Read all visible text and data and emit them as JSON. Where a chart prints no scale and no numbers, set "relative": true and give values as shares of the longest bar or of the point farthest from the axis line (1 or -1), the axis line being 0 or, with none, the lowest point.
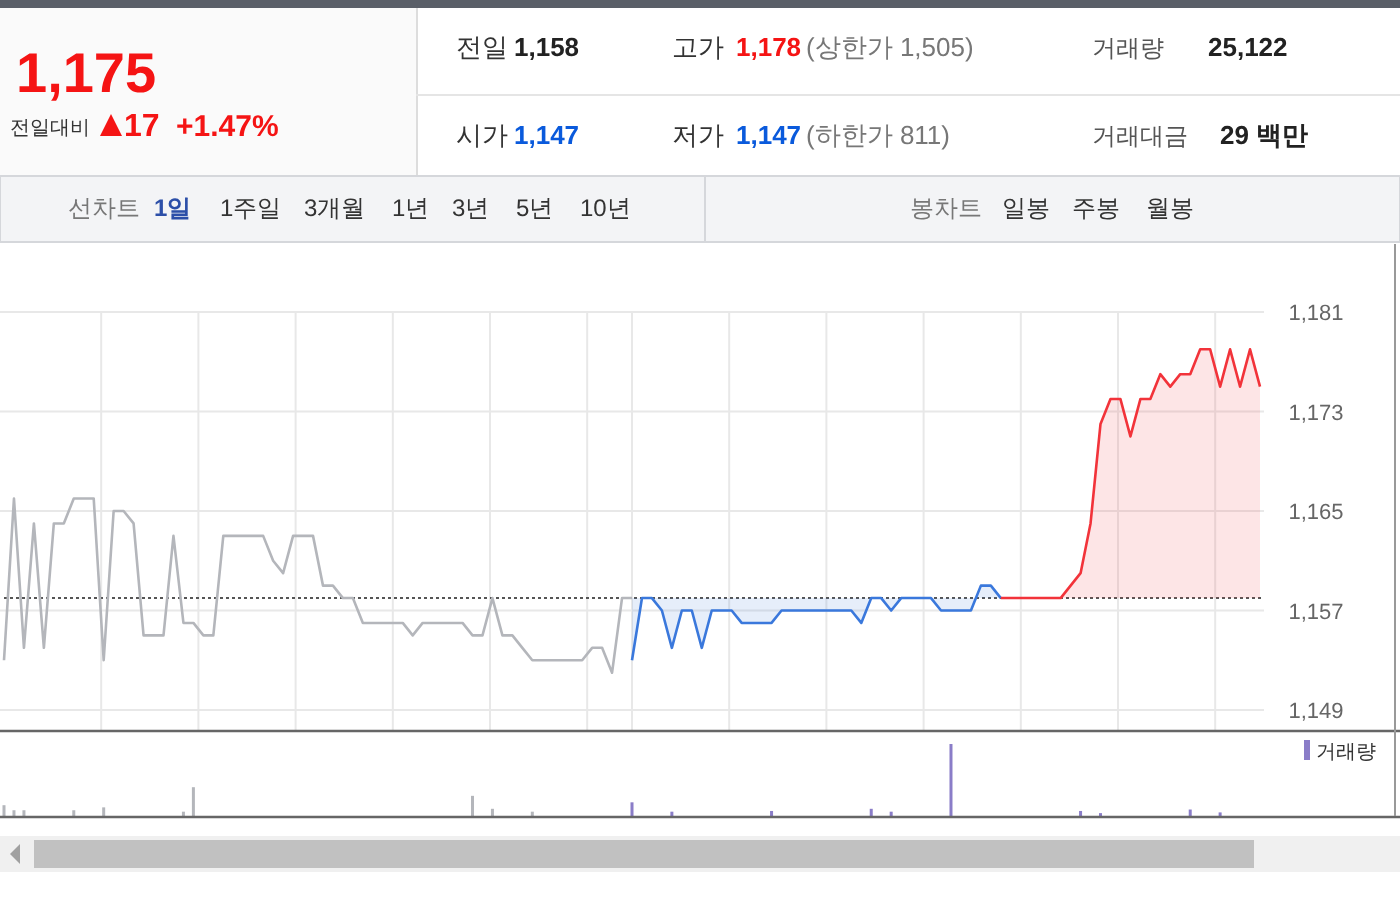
{
  "chart_data": [
    {
      "type": "other",
      "annotations": [
        "1,175",
        "전일대비",
        "17",
        "+1.47%",
        "전일",
        "1,158",
        "고가",
        "1,178",
        "(상한가 1,505)",
        "거래량",
        "25,122",
        "시가",
        "1,147",
        "저가",
        "1,147",
        "(하한가 811)",
        "거래대금",
        "29 백만",
        "선차트",
        "1일",
        "1주일",
        "3개월",
        "1년",
        "3년",
        "5년",
        "10년",
        "봉차트",
        "일봉",
        "주봉",
        "월봉"
      ]
    },
    {
      "type": "line",
      "tick_labels": "y",
      "grid": true,
      "ylim": [
        1149,
        1181
      ],
      "yticks": [
        {
          "value": 1149,
          "label": "1,149"
        },
        {
          "value": 1157,
          "label": "1,157"
        },
        {
          "value": 1165,
          "label": "1,165"
        },
        {
          "value": 1173,
          "label": "1,173"
        },
        {
          "value": 1181,
          "label": "1,181"
        }
      ],
      "ref_lines": [
        {
          "axis": "y",
          "value": 1158,
          "label": null,
          "color": "#555555",
          "line_style": "dotted"
        }
      ],
      "categories": [
        null,
        null,
        null,
        null,
        null,
        null,
        null,
        null,
        null,
        null,
        null,
        null,
        null,
        null,
        null,
        null,
        null,
        null,
        null,
        null,
        null,
        null,
        null,
        null,
        null,
        null,
        null,
        null,
        null,
        null,
        null,
        null,
        null,
        null,
        null,
        null,
        null,
        null,
        null,
        null,
        null,
        null,
        null,
        null,
        null,
        null,
        null,
        null,
        null,
        null,
        null,
        null,
        null,
        null,
        null,
        null,
        null,
        null,
        null,
        null,
        null,
        null,
        null,
        null,
        null,
        null,
        null,
        null,
        null,
        null,
        null,
        null,
        null,
        null,
        null,
        null,
        null,
        null,
        null,
        null,
        null,
        null,
        null,
        null,
        null,
        null,
        null,
        null,
        null,
        null,
        null,
        null,
        null,
        null,
        null,
        null,
        null,
        null,
        null,
        null,
        null,
        null,
        null,
        null,
        null,
        null,
        null,
        null,
        null,
        null,
        null,
        null,
        null,
        null,
        null,
        null,
        null,
        null,
        null,
        null,
        null,
        null,
        null,
        null,
        null,
        null,
        null
      ],
      "series": [
        {
          "type": "line",
          "color": "#b4b6bb",
          "values": [
            1153,
            1166,
            1154,
            1164,
            1154,
            1164,
            1164,
            1166,
            1166,
            1166,
            1153,
            1165,
            1165,
            1164,
            1155,
            1155,
            1155,
            1163,
            1156,
            1156,
            1155,
            1155,
            1163,
            1163,
            1163,
            1163,
            1163,
            1161,
            1160,
            1163,
            1163,
            1163,
            1159,
            1159,
            1158,
            1158,
            1156,
            1156,
            1156,
            1156,
            1156,
            1155,
            1156,
            1156,
            1156,
            1156,
            1156,
            1155,
            1155,
            1158,
            1155,
            1155,
            1154,
            1153,
            1153,
            1153,
            1153,
            1153,
            1153,
            1154,
            1154,
            1152,
            1158,
            1158,
            null,
            null,
            null,
            null,
            null,
            null,
            null,
            null,
            null,
            null,
            null,
            null,
            null,
            null,
            null,
            null,
            null,
            null,
            null,
            null,
            null,
            null,
            null,
            null,
            null,
            null,
            null,
            null,
            null,
            null,
            null,
            null,
            null,
            null,
            null,
            null,
            null,
            null,
            null,
            null,
            null,
            null,
            null,
            null,
            null,
            null,
            null,
            null,
            null,
            null,
            null,
            null,
            null,
            null,
            null,
            null,
            null,
            null,
            null,
            null,
            null,
            null,
            null
          ]
        },
        {
          "type": "area",
          "color": "#3a78dc",
          "values": [
            null,
            null,
            null,
            null,
            null,
            null,
            null,
            null,
            null,
            null,
            null,
            null,
            null,
            null,
            null,
            null,
            null,
            null,
            null,
            null,
            null,
            null,
            null,
            null,
            null,
            null,
            null,
            null,
            null,
            null,
            null,
            null,
            null,
            null,
            null,
            null,
            null,
            null,
            null,
            null,
            null,
            null,
            null,
            null,
            null,
            null,
            null,
            null,
            null,
            null,
            null,
            null,
            null,
            null,
            null,
            null,
            null,
            null,
            null,
            null,
            null,
            null,
            null,
            1153,
            1158,
            1158,
            1157,
            1154,
            1157,
            1157,
            1154,
            1157,
            1157,
            1157,
            1156,
            1156,
            1156,
            1156,
            1157,
            1157,
            1157,
            1157,
            1157,
            1157,
            1157,
            1157,
            1156,
            1158,
            1158,
            1157,
            1158,
            1158,
            1158,
            1158,
            1157,
            1157,
            1157,
            1157,
            1159,
            1159,
            1158,
            null,
            null,
            null,
            null,
            null,
            null,
            null,
            null,
            null,
            null,
            null,
            null,
            null,
            null,
            null,
            null,
            null,
            null,
            null,
            null,
            null,
            null,
            null,
            null,
            null,
            null
          ]
        },
        {
          "type": "area",
          "color": "#f2333a",
          "values": [
            null,
            null,
            null,
            null,
            null,
            null,
            null,
            null,
            null,
            null,
            null,
            null,
            null,
            null,
            null,
            null,
            null,
            null,
            null,
            null,
            null,
            null,
            null,
            null,
            null,
            null,
            null,
            null,
            null,
            null,
            null,
            null,
            null,
            null,
            null,
            null,
            null,
            null,
            null,
            null,
            null,
            null,
            null,
            null,
            null,
            null,
            null,
            null,
            null,
            null,
            null,
            null,
            null,
            null,
            null,
            null,
            null,
            null,
            null,
            null,
            null,
            null,
            null,
            null,
            null,
            null,
            null,
            null,
            null,
            null,
            null,
            null,
            null,
            null,
            null,
            null,
            null,
            null,
            null,
            null,
            null,
            null,
            null,
            null,
            null,
            null,
            null,
            null,
            null,
            null,
            null,
            null,
            null,
            null,
            null,
            null,
            null,
            null,
            null,
            null,
            1158,
            1158,
            1158,
            1158,
            1158,
            1158,
            1158,
            1159,
            1160,
            1164,
            1172,
            1174,
            1174,
            1171,
            1174,
            1174,
            1176,
            1175,
            1176,
            1176,
            1178,
            1178,
            1175,
            1178,
            1175,
            1178,
            1175
          ]
        }
      ]
    },
    {
      "type": "bar",
      "relative": true,
      "tick_labels": false,
      "legend": "top right",
      "categories": [
        null,
        null,
        null,
        null,
        null,
        null,
        null,
        null,
        null,
        null,
        null,
        null,
        null,
        null,
        null,
        null,
        null,
        null,
        null,
        null,
        null,
        null,
        null,
        null,
        null,
        null,
        null,
        null,
        null,
        null,
        null,
        null,
        null,
        null,
        null,
        null,
        null,
        null,
        null,
        null,
        null,
        null,
        null,
        null,
        null,
        null,
        null,
        null,
        null,
        null,
        null,
        null,
        null,
        null,
        null,
        null,
        null,
        null,
        null,
        null,
        null,
        null,
        null,
        null,
        null,
        null,
        null,
        null,
        null,
        null,
        null,
        null,
        null,
        null,
        null,
        null,
        null,
        null,
        null,
        null,
        null,
        null,
        null,
        null,
        null,
        null,
        null,
        null,
        null,
        null,
        null,
        null,
        null,
        null,
        null,
        null,
        null,
        null,
        null,
        null,
        null,
        null,
        null,
        null,
        null,
        null,
        null,
        null,
        null,
        null,
        null,
        null,
        null,
        null,
        null,
        null,
        null,
        null,
        null,
        null,
        null,
        null,
        null,
        null,
        null,
        null,
        null
      ],
      "series": [
        {
          "color": "#b4b6bb",
          "values": [
            0.15,
            0.08,
            0.08,
            null,
            null,
            null,
            null,
            0.08,
            null,
            null,
            0.12,
            null,
            null,
            null,
            null,
            null,
            null,
            null,
            0.06,
            0.4,
            null,
            null,
            null,
            null,
            null,
            null,
            null,
            null,
            null,
            null,
            null,
            null,
            null,
            null,
            null,
            null,
            null,
            null,
            null,
            null,
            null,
            null,
            null,
            null,
            null,
            null,
            null,
            0.28,
            null,
            0.1,
            null,
            null,
            null,
            0.06,
            null,
            null,
            null,
            null,
            null,
            null,
            null,
            null,
            null,
            null,
            null,
            null,
            null,
            null,
            null,
            null,
            null,
            null,
            null,
            null,
            null,
            null,
            null,
            null,
            null,
            null,
            null,
            null,
            null,
            null,
            null,
            null,
            null,
            null,
            null,
            null,
            null,
            null,
            null,
            null,
            null,
            null,
            null,
            null,
            null,
            null,
            null,
            null,
            null,
            null,
            null,
            null,
            null,
            null,
            null,
            null,
            null,
            null,
            null,
            null,
            null,
            null,
            null,
            null,
            null,
            null,
            null,
            null,
            null,
            null,
            null,
            null,
            null
          ]
        },
        {
          "name": "거래량",
          "color": "#8a7dc8",
          "values": [
            null,
            null,
            null,
            null,
            null,
            null,
            null,
            null,
            null,
            null,
            null,
            null,
            null,
            null,
            null,
            null,
            null,
            null,
            null,
            null,
            null,
            null,
            null,
            null,
            null,
            null,
            null,
            null,
            null,
            null,
            null,
            null,
            null,
            null,
            null,
            null,
            null,
            null,
            null,
            null,
            null,
            null,
            null,
            null,
            null,
            null,
            null,
            null,
            null,
            null,
            null,
            null,
            null,
            null,
            null,
            null,
            null,
            null,
            null,
            null,
            null,
            null,
            null,
            0.19,
            null,
            null,
            null,
            0.06,
            null,
            null,
            null,
            null,
            null,
            null,
            null,
            null,
            null,
            0.07,
            null,
            null,
            null,
            null,
            null,
            null,
            null,
            null,
            null,
            0.1,
            null,
            0.06,
            null,
            null,
            null,
            null,
            null,
            1,
            null,
            null,
            null,
            null,
            null,
            null,
            null,
            null,
            null,
            null,
            null,
            null,
            0.07,
            null,
            0.04,
            null,
            null,
            null,
            null,
            null,
            null,
            null,
            null,
            0.09,
            null,
            null,
            0.05,
            null,
            null,
            null,
            null
          ]
        }
      ]
    }
  ]
}
